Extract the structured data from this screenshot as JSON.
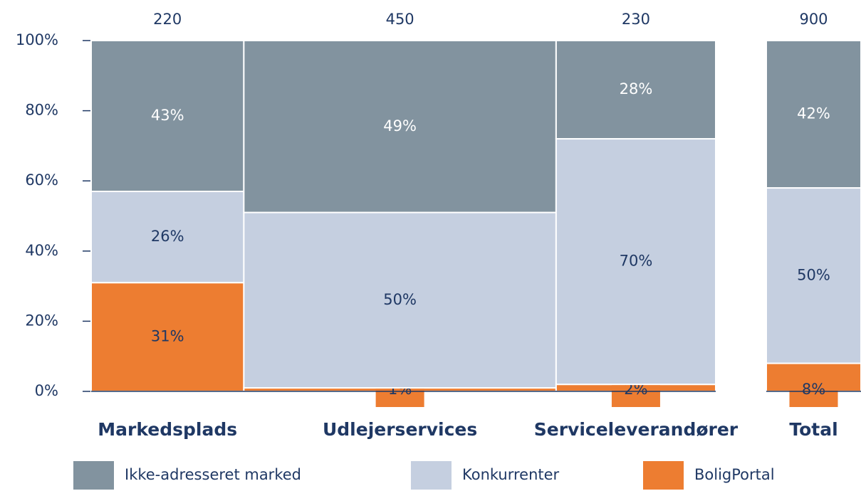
{
  "chart_data": {
    "type": "marimekko",
    "categories": [
      "Markedsplads",
      "Udlejerservices",
      "Serviceleverandører",
      "Total"
    ],
    "widths": [
      220,
      450,
      230,
      900
    ],
    "series": [
      {
        "name": "BoligPortal",
        "color": "#ed7d31",
        "values": [
          31,
          1,
          2,
          8
        ],
        "value_labels": [
          "31%",
          "1%",
          "2%",
          "8%"
        ]
      },
      {
        "name": "Konkurrenter",
        "color": "#c5cfe0",
        "values": [
          26,
          50,
          70,
          50
        ],
        "value_labels": [
          "26%",
          "50%",
          "70%",
          "50%"
        ]
      },
      {
        "name": "Ikke-adresseret marked",
        "color": "#82939f",
        "values": [
          43,
          49,
          28,
          42
        ],
        "value_labels": [
          "43%",
          "49%",
          "28%",
          "42%"
        ]
      }
    ],
    "ylim": [
      0,
      100
    ],
    "yticks": [
      {
        "value": 0,
        "label": "0%"
      },
      {
        "value": 20,
        "label": "20%"
      },
      {
        "value": 40,
        "label": "40%"
      },
      {
        "value": 60,
        "label": "60%"
      },
      {
        "value": 80,
        "label": "80%"
      },
      {
        "value": 100,
        "label": "100%"
      }
    ]
  }
}
